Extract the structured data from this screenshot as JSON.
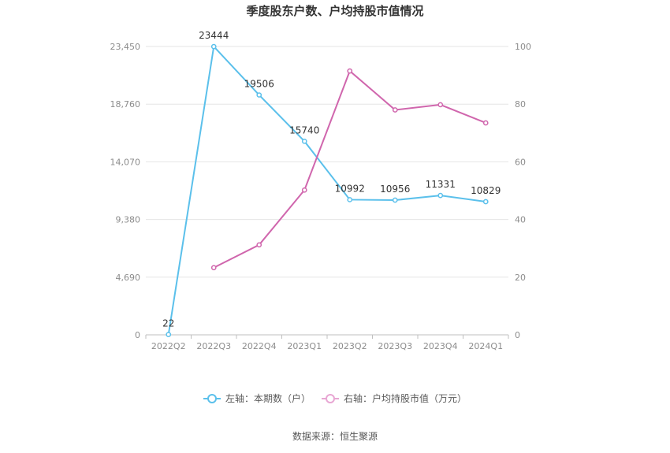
{
  "chart_data": {
    "type": "line",
    "title": "季度股东户数、户均持股市值情况",
    "categories": [
      "2022Q2",
      "2022Q3",
      "2022Q4",
      "2023Q1",
      "2023Q2",
      "2023Q3",
      "2023Q4",
      "2024Q1"
    ],
    "series": [
      {
        "name": "左轴：本期数（户）",
        "axis": "left",
        "color": "#5bc0eb",
        "values": [
          22,
          23444,
          19506,
          15740,
          10992,
          10956,
          11331,
          10829
        ],
        "labels": [
          "22",
          "23444",
          "19506",
          "15740",
          "10992",
          "10956",
          "11331",
          "10829"
        ]
      },
      {
        "name": "右轴：户均持股市值（万元）",
        "axis": "right",
        "color": "#d066ad",
        "values": [
          null,
          23.3,
          31.2,
          50.2,
          91.5,
          78.0,
          79.8,
          73.5
        ]
      }
    ],
    "y_left": {
      "min": 0,
      "max": 23450,
      "ticks": [
        0,
        4690,
        9380,
        14070,
        18760,
        23450
      ],
      "tick_labels": [
        "0",
        "4,690",
        "9,380",
        "14,070",
        "18,760",
        "23,450"
      ]
    },
    "y_right": {
      "min": 0,
      "max": 100,
      "ticks": [
        0,
        20,
        40,
        60,
        80,
        100
      ],
      "tick_labels": [
        "0",
        "20",
        "40",
        "60",
        "80",
        "100"
      ]
    },
    "grid": true,
    "legend_position": "bottom-center"
  },
  "source_text": "数据来源：恒生聚源"
}
